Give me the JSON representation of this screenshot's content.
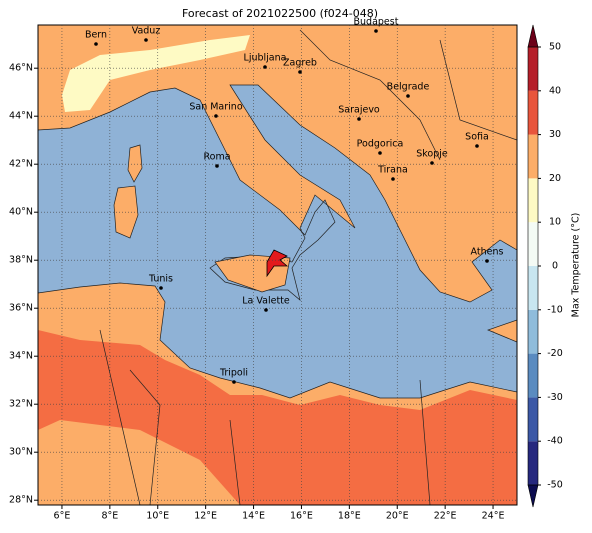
{
  "title": "Forecast of 2021022500 (f024-048)",
  "map": {
    "xlim": [
      5,
      25
    ],
    "ylim": [
      27.8,
      47.8
    ],
    "xticks": [
      {
        "value": 6,
        "label": "6°E"
      },
      {
        "value": 8,
        "label": "8°E"
      },
      {
        "value": 10,
        "label": "10°E"
      },
      {
        "value": 12,
        "label": "12°E"
      },
      {
        "value": 14,
        "label": "14°E"
      },
      {
        "value": 16,
        "label": "16°E"
      },
      {
        "value": 18,
        "label": "18°E"
      },
      {
        "value": 20,
        "label": "20°E"
      },
      {
        "value": 22,
        "label": "22°E"
      },
      {
        "value": 24,
        "label": "24°E"
      }
    ],
    "yticks": [
      {
        "value": 28,
        "label": "28°N"
      },
      {
        "value": 30,
        "label": "30°N"
      },
      {
        "value": 32,
        "label": "32°N"
      },
      {
        "value": 34,
        "label": "34°N"
      },
      {
        "value": 36,
        "label": "36°N"
      },
      {
        "value": 38,
        "label": "38°N"
      },
      {
        "value": 40,
        "label": "40°N"
      },
      {
        "value": 42,
        "label": "42°N"
      },
      {
        "value": 44,
        "label": "44°N"
      },
      {
        "value": 46,
        "label": "46°N"
      }
    ],
    "grid": true
  },
  "cities": [
    "Bern",
    "Vaduz",
    "Budapest",
    "Ljubljana",
    "Zagreb",
    "Belgrade",
    "San Marino",
    "Sarajevo",
    "Sofia",
    "Podgorica",
    "Skopje",
    "Roma",
    "Tirana",
    "Athens",
    "Tunis",
    "La Valette",
    "Tripoli"
  ],
  "colorbar": {
    "label": "Max Temperature (°C)",
    "lim": [
      -50,
      50
    ],
    "ticks": [
      -50,
      -40,
      -30,
      -20,
      -10,
      0,
      10,
      20,
      30,
      40,
      50
    ],
    "colors": [
      "#26287e",
      "#3b58a6",
      "#5a8bc0",
      "#8fbcdb",
      "#c8e6f0",
      "#f4fbf5",
      "#fefac4",
      "#fcad68",
      "#e8553c",
      "#b51f2a"
    ],
    "under_color": "#0c0c50",
    "over_color": "#6b0018"
  }
}
